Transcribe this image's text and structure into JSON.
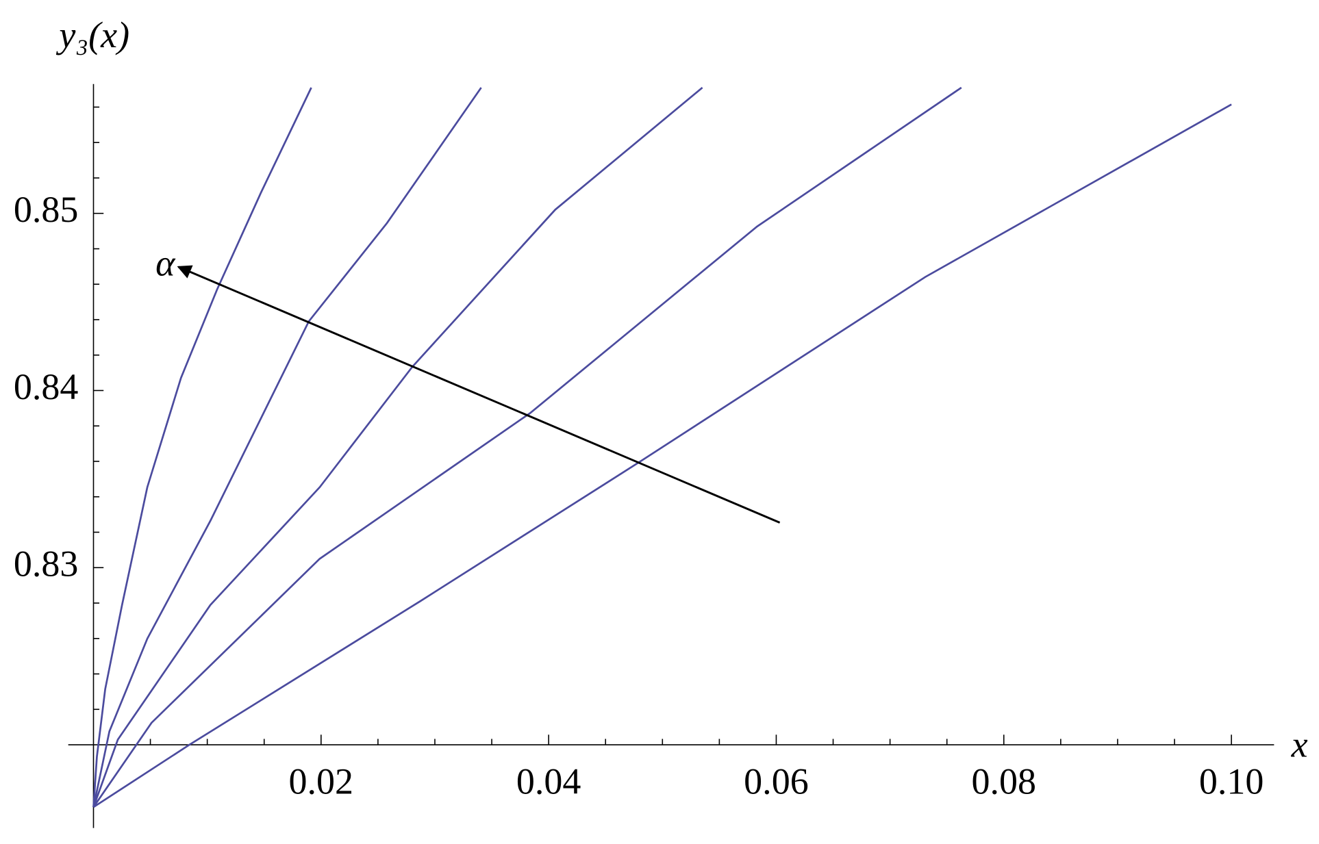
{
  "chart_data": {
    "type": "line",
    "xlabel": "x",
    "ylabel": "y₃(x)",
    "xlim": [
      0,
      0.1019
    ],
    "ylim": [
      0.8153,
      0.8573
    ],
    "axes_origin": [
      0,
      0.82
    ],
    "xticks": [
      0.02,
      0.04,
      0.06,
      0.08,
      {
        "value": 0.1,
        "label": "0.10"
      }
    ],
    "xminorticks": [
      0.005,
      0.01,
      0.015,
      0.025,
      0.03,
      0.035,
      0.045,
      0.05,
      0.055,
      0.065,
      0.07,
      0.075,
      0.085,
      0.09,
      0.095
    ],
    "yticks": [
      0.83,
      0.84,
      0.85
    ],
    "yminorticks": [
      0.822,
      0.824,
      0.826,
      0.828,
      0.832,
      0.834,
      0.836,
      0.838,
      0.842,
      0.844,
      0.846,
      0.848,
      0.852,
      0.854,
      0.856
    ],
    "series": [
      {
        "color": "#4b4b9e",
        "x": [
          0,
          0.0003,
          0.00103,
          0.00251,
          0.00473,
          0.00769,
          0.01086,
          0.01471,
          0.01914
        ],
        "values": [
          0.81648,
          0.81933,
          0.82314,
          0.82789,
          0.83454,
          0.84071,
          0.8457,
          0.85116,
          0.8571
        ]
      },
      {
        "color": "#4b4b9e",
        "x": [
          0,
          0.0014,
          0.00473,
          0.01027,
          0.01892,
          0.02579,
          0.03407
        ],
        "values": [
          0.81648,
          0.82076,
          0.82599,
          0.83264,
          0.8439,
          0.84945,
          0.8571
        ]
      },
      {
        "color": "#4b4b9e",
        "x": [
          0,
          0.00214,
          0.01027,
          0.01988,
          0.02801,
          0.04058,
          0.05351
        ],
        "values": [
          0.81648,
          0.82029,
          0.82789,
          0.83454,
          0.84133,
          0.85021,
          0.8571
        ]
      },
      {
        "color": "#4b4b9e",
        "x": [
          0,
          0.0051,
          0.01988,
          0.03836,
          0.05832,
          0.07627
        ],
        "values": [
          0.81648,
          0.82124,
          0.8305,
          0.83872,
          0.84926,
          0.8571
        ]
      },
      {
        "color": "#4b4b9e",
        "x": [
          0,
          0.00843,
          0.02875,
          0.04797,
          0.0731,
          0.1
        ],
        "values": [
          0.81648,
          0.82,
          0.82812,
          0.83596,
          0.84641,
          0.85615
        ]
      }
    ],
    "annotation": {
      "text": "α",
      "x_start": 0.06031,
      "y_start": 0.83254,
      "x": 0.00746,
      "y": 0.84698
    }
  }
}
